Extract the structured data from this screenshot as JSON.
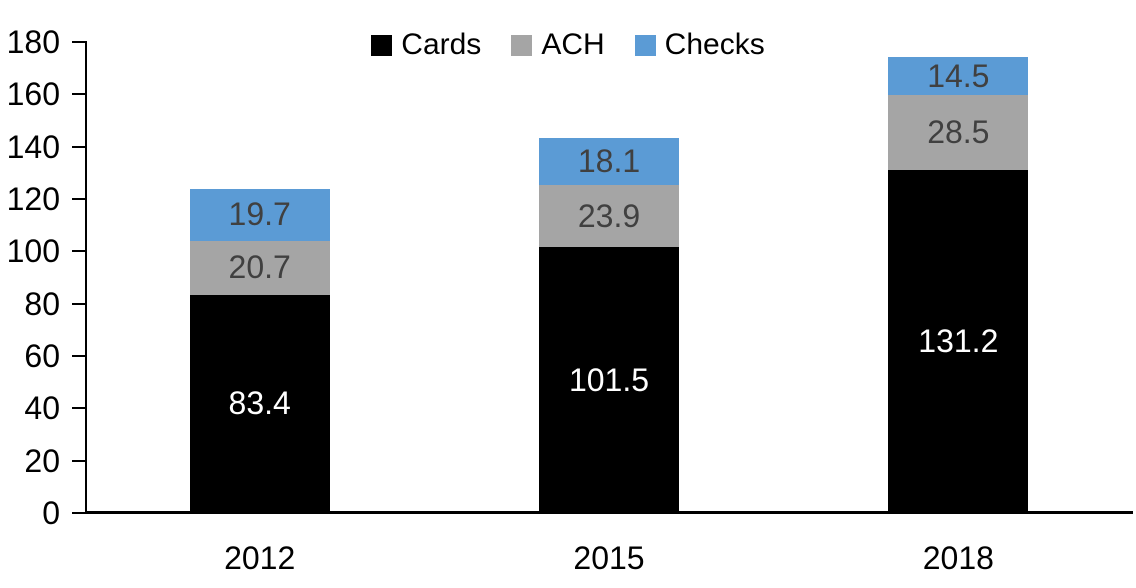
{
  "chart_data": {
    "type": "bar",
    "stacked": true,
    "title": "",
    "xlabel": "",
    "ylabel": "",
    "categories": [
      "2012",
      "2015",
      "2018"
    ],
    "series": [
      {
        "name": "Cards",
        "color": "#000000",
        "label_color": "#ffffff",
        "values": [
          83.4,
          101.5,
          131.2
        ]
      },
      {
        "name": "ACH",
        "color": "#a5a5a5",
        "label_color": "#404040",
        "values": [
          20.7,
          23.9,
          28.5
        ]
      },
      {
        "name": "Checks",
        "color": "#5b9bd5",
        "label_color": "#404040",
        "values": [
          19.7,
          18.1,
          14.5
        ]
      }
    ],
    "totals": [
      123.8,
      143.5,
      174.2
    ],
    "ylim": [
      0,
      180
    ],
    "ytick_step": 20,
    "ytick_labels": [
      "0",
      "20",
      "40",
      "60",
      "80",
      "100",
      "120",
      "140",
      "160",
      "180"
    ],
    "grid": false,
    "legend_position": "top-center",
    "data_labels": true,
    "axis_color": "#000000",
    "background_color": "#ffffff"
  }
}
